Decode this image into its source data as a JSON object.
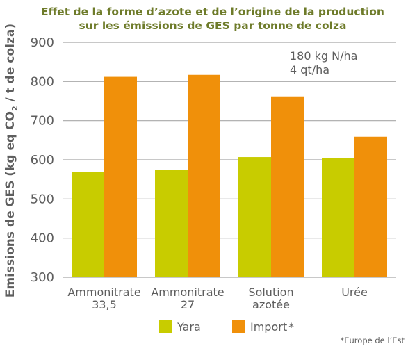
{
  "chart_data": {
    "type": "bar",
    "title_lines": [
      "Effet de la forme d’azote et de l’origine de la production",
      "sur les émissions de GES par tonne de colza"
    ],
    "ylabel": {
      "prefix": "Emissions de GES (kg eq CO",
      "subscript": "2",
      "suffix": " / t de colza)"
    },
    "ylim": [
      300,
      900
    ],
    "yticks": [
      "300",
      "400",
      "500",
      "600",
      "700",
      "800",
      "900"
    ],
    "grid": true,
    "categories": [
      [
        "Ammonitrate",
        "33,5"
      ],
      [
        "Ammonitrate",
        "27"
      ],
      [
        "Solution",
        "azotée"
      ],
      [
        "Urée"
      ]
    ],
    "series": [
      {
        "name": "Yara",
        "color": "#c8cc00",
        "values": [
          569,
          574,
          607,
          604
        ]
      },
      {
        "name": "Import",
        "color": "#f0900a",
        "values": [
          812,
          817,
          762,
          659
        ]
      }
    ],
    "legend_position": "bottom",
    "legend_marker_suffix": "*",
    "annotations": [
      "180 kg N/ha",
      "4 qt/ha"
    ],
    "footnote": "*Europe de l’Est"
  }
}
